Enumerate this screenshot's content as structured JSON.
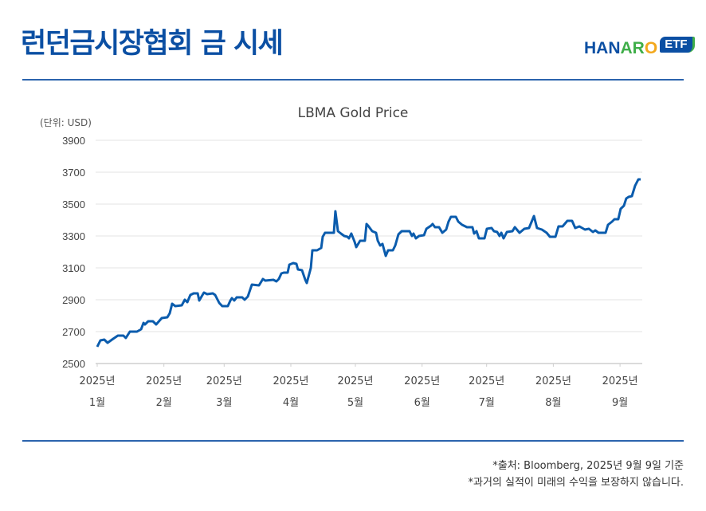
{
  "header": {
    "title": "런던금시장협회 금 시세",
    "logo": {
      "part1": "HAN",
      "part2": "AR",
      "part3": "O",
      "badge": "ETF"
    }
  },
  "colors": {
    "brand_blue": "#0b4fa3",
    "line": "#0b5cad",
    "green": "#3fae49",
    "orange": "#f3a81c"
  },
  "chart_data": {
    "type": "line",
    "title": "LBMA Gold Price",
    "unit_label": "(단위: USD)",
    "xlabel": "",
    "ylabel": "USD",
    "ylim": [
      2500,
      3900
    ],
    "yticks": [
      "3900",
      "3700",
      "3500",
      "3300",
      "3100",
      "2900",
      "2700",
      "2500"
    ],
    "ytick_values": [
      3900,
      3700,
      3500,
      3300,
      3100,
      2900,
      2700,
      2500
    ],
    "xlim_day_of_year": [
      0,
      253
    ],
    "xticks": [
      {
        "day": 0,
        "year": "2025년",
        "month": "1월"
      },
      {
        "day": 31,
        "year": "2025년",
        "month": "2월"
      },
      {
        "day": 59,
        "year": "2025년",
        "month": "3월"
      },
      {
        "day": 90,
        "year": "2025년",
        "month": "4월"
      },
      {
        "day": 120,
        "year": "2025년",
        "month": "5월"
      },
      {
        "day": 151,
        "year": "2025년",
        "month": "6월"
      },
      {
        "day": 181,
        "year": "2025년",
        "month": "7월"
      },
      {
        "day": 212,
        "year": "2025년",
        "month": "8월"
      },
      {
        "day": 243,
        "year": "2025년",
        "month": "9월"
      }
    ],
    "grid": true,
    "series": [
      {
        "name": "LBMA Gold Price",
        "x_day_of_year": [
          0,
          1.5,
          3.3,
          4.8,
          7.4,
          9.6,
          12.2,
          13.3,
          15.2,
          18.5,
          20.4,
          21.5,
          22.2,
          23.7,
          25.9,
          27.4,
          30,
          32.6,
          33.7,
          34.8,
          36.3,
          39.3,
          40.7,
          41.9,
          43.3,
          44.8,
          46.7,
          47.4,
          49.6,
          51.1,
          53.7,
          54.8,
          56.7,
          58.1,
          60.7,
          61.9,
          62.6,
          63.7,
          64.8,
          67.4,
          68.5,
          70,
          71.9,
          75.2,
          77,
          78.1,
          81.9,
          83.3,
          84.4,
          85.6,
          86.7,
          88.5,
          89.3,
          91.1,
          92.6,
          93.3,
          95.2,
          96.7,
          97.4,
          99.3,
          100,
          102.2,
          104.1,
          104.8,
          105.9,
          110,
          110.7,
          111.9,
          113.3,
          114.8,
          116.3,
          117,
          118.1,
          119.6,
          120.4,
          121.5,
          122.2,
          124.4,
          125.2,
          125.9,
          127.8,
          129.6,
          130.4,
          131.5,
          132.6,
          134.1,
          135.2,
          137.4,
          138.5,
          140,
          141.5,
          145.2,
          146.3,
          147,
          148.1,
          149.6,
          151.9,
          153,
          155.2,
          155.9,
          157,
          158.9,
          160.4,
          162.2,
          163.3,
          164.4,
          166.7,
          167.8,
          169.6,
          171.9,
          174.4,
          175.2,
          176.3,
          177.4,
          180,
          181.1,
          183.3,
          184.4,
          185.9,
          187,
          187.8,
          188.9,
          190.4,
          193,
          194.1,
          196.3,
          198.5,
          200.7,
          203,
          204.4,
          206.7,
          208.9,
          210.4,
          213,
          214.4,
          216.3,
          218.5,
          220.7,
          222.2,
          224.1,
          226.7,
          228.5,
          230.4,
          231.5,
          233,
          236.3,
          237.4,
          239.3,
          240.4,
          242.2,
          243.3,
          244.8,
          245.9,
          247,
          248.5,
          250,
          251.5,
          252.6
        ],
        "values": [
          2605,
          2645,
          2650,
          2630,
          2655,
          2675,
          2675,
          2660,
          2700,
          2700,
          2715,
          2755,
          2745,
          2765,
          2765,
          2745,
          2785,
          2790,
          2815,
          2875,
          2860,
          2865,
          2900,
          2885,
          2930,
          2940,
          2940,
          2895,
          2945,
          2935,
          2940,
          2930,
          2880,
          2860,
          2860,
          2895,
          2910,
          2895,
          2915,
          2915,
          2900,
          2920,
          2995,
          2990,
          3030,
          3020,
          3025,
          3015,
          3030,
          3065,
          3070,
          3070,
          3120,
          3130,
          3125,
          3090,
          3085,
          3025,
          3005,
          3100,
          3210,
          3210,
          3225,
          3295,
          3320,
          3320,
          3455,
          3330,
          3315,
          3300,
          3295,
          3285,
          3315,
          3265,
          3230,
          3255,
          3270,
          3270,
          3375,
          3365,
          3330,
          3320,
          3270,
          3240,
          3250,
          3175,
          3210,
          3210,
          3240,
          3310,
          3330,
          3330,
          3300,
          3315,
          3285,
          3300,
          3305,
          3345,
          3365,
          3375,
          3355,
          3355,
          3320,
          3340,
          3390,
          3420,
          3420,
          3390,
          3370,
          3355,
          3355,
          3315,
          3330,
          3285,
          3285,
          3345,
          3350,
          3330,
          3325,
          3300,
          3320,
          3285,
          3325,
          3330,
          3355,
          3320,
          3345,
          3350,
          3425,
          3350,
          3340,
          3320,
          3295,
          3295,
          3360,
          3360,
          3395,
          3395,
          3350,
          3360,
          3340,
          3345,
          3325,
          3335,
          3320,
          3320,
          3370,
          3390,
          3405,
          3405,
          3470,
          3490,
          3535,
          3545,
          3550,
          3615,
          3655,
          3655
        ]
      }
    ]
  },
  "footer": {
    "source": "*출처: Bloomberg, 2025년 9월 9일 기준",
    "disclaimer": "*과거의 실적이 미래의 수익을 보장하지 않습니다."
  }
}
